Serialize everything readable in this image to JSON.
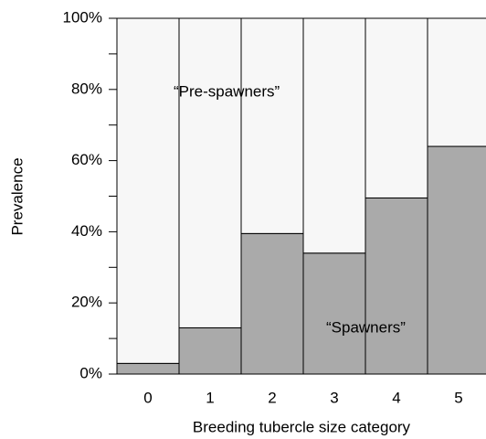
{
  "chart_data": {
    "type": "stacked_bar",
    "xlabel": "Breeding tubercle size category",
    "ylabel": "Prevalence",
    "categories": [
      "0",
      "1",
      "2",
      "3",
      "4",
      "5"
    ],
    "series": [
      {
        "name": "“Spawners”",
        "color": "#aaaaaa",
        "values": [
          3,
          13,
          39.5,
          34,
          49.5,
          64
        ]
      },
      {
        "name": "“Pre-spawners”",
        "color": "#f7f7f7",
        "values": [
          97,
          87,
          60.5,
          66,
          50.5,
          36
        ]
      }
    ],
    "ylim": [
      0,
      100
    ],
    "yticks": [
      {
        "value": 0,
        "label": "0%"
      },
      {
        "value": 20,
        "label": "20%"
      },
      {
        "value": 40,
        "label": "40%"
      },
      {
        "value": 60,
        "label": "60%"
      },
      {
        "value": 80,
        "label": "80%"
      },
      {
        "value": 100,
        "label": "100%"
      }
    ],
    "minor_yticks": [
      10,
      30,
      50,
      70,
      90
    ]
  }
}
